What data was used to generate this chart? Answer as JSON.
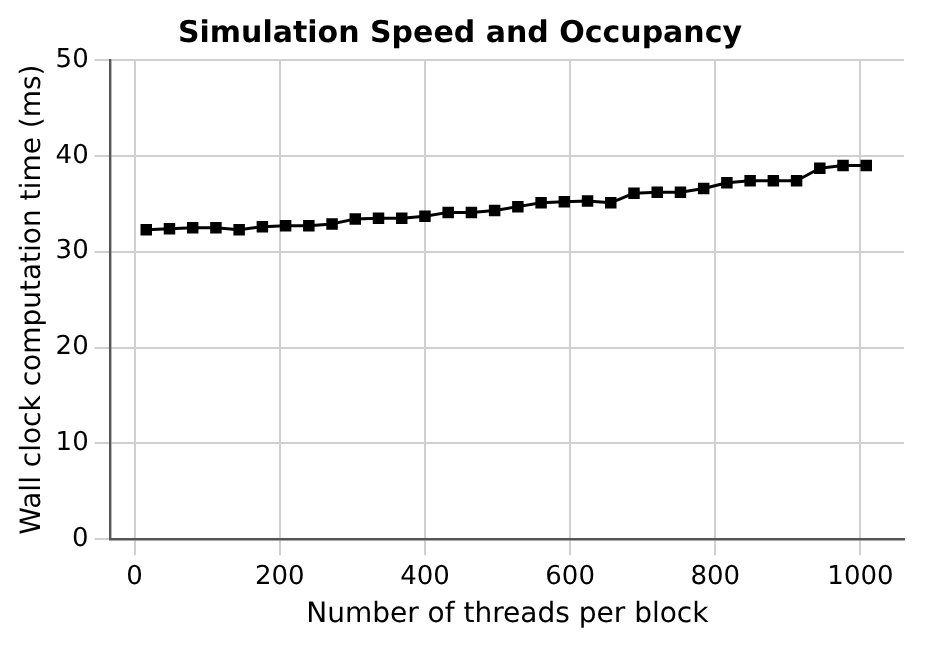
{
  "chart_data": {
    "type": "line",
    "title": "Simulation Speed and Occupancy",
    "xlabel": "Number of threads per block",
    "ylabel": "Wall clock computation time (ms)",
    "x": [
      16,
      48,
      80,
      112,
      144,
      176,
      208,
      240,
      272,
      304,
      336,
      368,
      400,
      432,
      464,
      496,
      528,
      560,
      592,
      624,
      656,
      688,
      720,
      752,
      784,
      816,
      848,
      880,
      912,
      944,
      976,
      1008
    ],
    "series": [
      {
        "color": "#000000",
        "values": [
          32.3,
          32.4,
          32.5,
          32.5,
          32.3,
          32.6,
          32.7,
          32.7,
          32.9,
          33.4,
          33.5,
          33.5,
          33.7,
          34.1,
          34.1,
          34.3,
          34.7,
          35.1,
          35.2,
          35.3,
          35.1,
          36.1,
          36.2,
          36.2,
          36.6,
          37.2,
          37.4,
          37.4,
          37.4,
          38.7,
          39.0,
          39.0
        ]
      }
    ],
    "xlim": [
      -33,
      1060
    ],
    "xticks": [
      0,
      200,
      400,
      600,
      800,
      1000
    ],
    "ylim": [
      0,
      50
    ],
    "yticks": [
      0,
      10,
      20,
      30,
      40,
      50
    ],
    "grid": true,
    "legend": false,
    "marker": "square",
    "line_style": "solid"
  }
}
